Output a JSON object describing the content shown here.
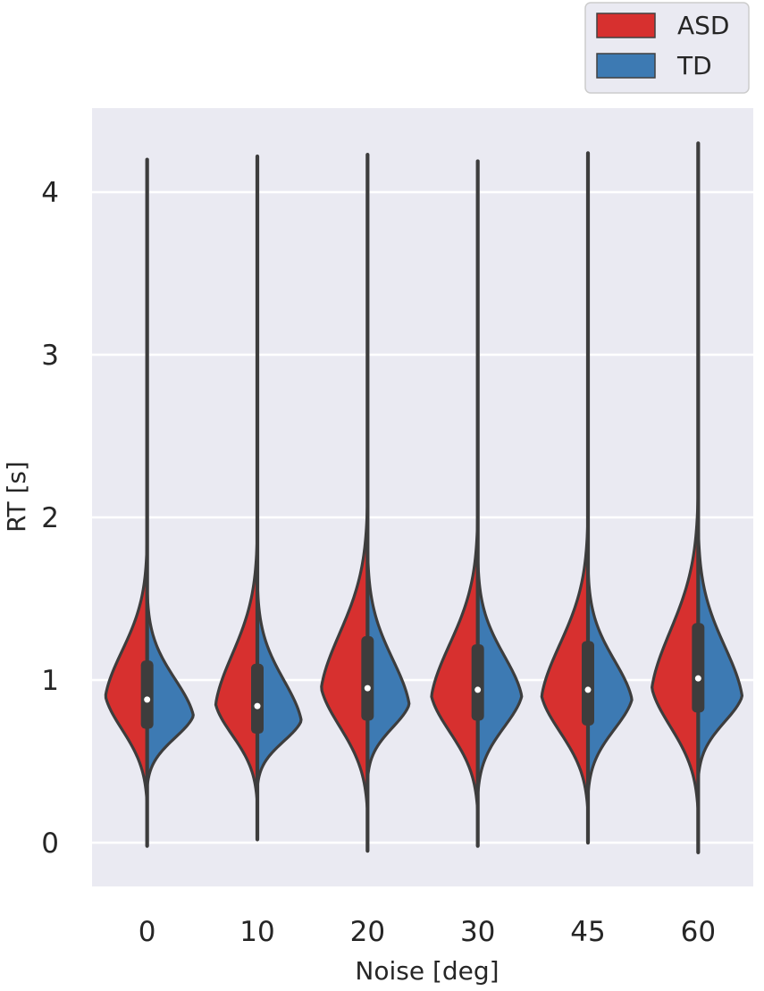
{
  "chart_data": {
    "type": "violin",
    "split": true,
    "xlabel": "Noise [deg]",
    "ylabel": "RT [s]",
    "categories": [
      "0",
      "10",
      "20",
      "30",
      "45",
      "60"
    ],
    "ylim": [
      -0.26,
      4.5
    ],
    "yticks": [
      0,
      1,
      2,
      3,
      4
    ],
    "grid": true,
    "background": "#eaeaf2",
    "legend": {
      "position": "top-right",
      "entries": [
        {
          "label": "ASD",
          "color": "#d7302f"
        },
        {
          "label": "TD",
          "color": "#3d7ab3"
        }
      ]
    },
    "series": [
      {
        "name": "ASD",
        "color": "#d7302f",
        "violins": [
          {
            "min": 0.25,
            "max": 1.85,
            "mode": 0.9,
            "width": 0.9
          },
          {
            "min": 0.25,
            "max": 1.9,
            "mode": 0.85,
            "width": 0.9
          },
          {
            "min": 0.2,
            "max": 2.1,
            "mode": 0.95,
            "width": 1.0
          },
          {
            "min": 0.2,
            "max": 2.0,
            "mode": 0.9,
            "width": 1.0
          },
          {
            "min": 0.2,
            "max": 2.0,
            "mode": 0.9,
            "width": 1.0
          },
          {
            "min": 0.2,
            "max": 2.15,
            "mode": 0.95,
            "width": 1.0
          }
        ]
      },
      {
        "name": "TD",
        "color": "#3d7ab3",
        "violins": [
          {
            "min": 0.35,
            "max": 1.55,
            "mode": 0.78,
            "width": 1.0
          },
          {
            "min": 0.35,
            "max": 1.6,
            "mode": 0.75,
            "width": 0.95
          },
          {
            "min": 0.4,
            "max": 1.8,
            "mode": 0.85,
            "width": 0.9
          },
          {
            "min": 0.3,
            "max": 1.75,
            "mode": 0.9,
            "width": 0.95
          },
          {
            "min": 0.3,
            "max": 1.7,
            "mode": 0.88,
            "width": 0.95
          },
          {
            "min": 0.4,
            "max": 1.95,
            "mode": 0.9,
            "width": 0.95
          }
        ]
      }
    ],
    "pooled": [
      {
        "whisker_min": -0.02,
        "q1": 0.7,
        "median": 0.88,
        "q3": 1.12,
        "whisker_max": 4.2
      },
      {
        "whisker_min": 0.02,
        "q1": 0.67,
        "median": 0.84,
        "q3": 1.1,
        "whisker_max": 4.22
      },
      {
        "whisker_min": -0.05,
        "q1": 0.75,
        "median": 0.95,
        "q3": 1.27,
        "whisker_max": 4.23
      },
      {
        "whisker_min": -0.02,
        "q1": 0.75,
        "median": 0.94,
        "q3": 1.22,
        "whisker_max": 4.19
      },
      {
        "whisker_min": 0.0,
        "q1": 0.72,
        "median": 0.94,
        "q3": 1.24,
        "whisker_max": 4.24
      },
      {
        "whisker_min": -0.06,
        "q1": 0.8,
        "median": 1.01,
        "q3": 1.35,
        "whisker_max": 4.3
      }
    ]
  }
}
